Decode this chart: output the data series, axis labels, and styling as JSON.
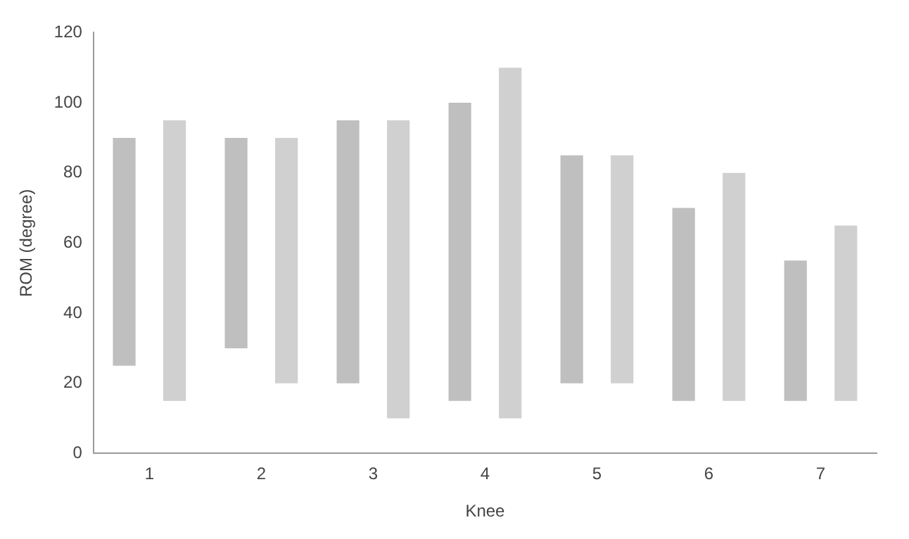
{
  "chart_data": {
    "type": "bar",
    "xlabel": "Knee",
    "ylabel": "ROM (degree)",
    "categories": [
      "1",
      "2",
      "3",
      "4",
      "5",
      "6",
      "7"
    ],
    "series": [
      {
        "color": "#bfbfbf",
        "base": [
          25,
          30,
          20,
          15,
          20,
          15,
          15
        ],
        "values": [
          65,
          60,
          75,
          85,
          65,
          55,
          40
        ]
      },
      {
        "color": "#d0d0d0",
        "base": [
          15,
          20,
          10,
          10,
          20,
          15,
          15
        ],
        "values": [
          80,
          70,
          85,
          100,
          65,
          65,
          50
        ]
      }
    ],
    "ylim": [
      0,
      120
    ],
    "yticks": [
      0,
      20,
      40,
      60,
      80,
      100,
      120
    ],
    "grid": false,
    "legend": false
  }
}
